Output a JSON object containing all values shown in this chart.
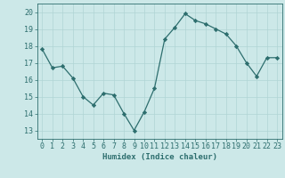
{
  "x": [
    0,
    1,
    2,
    3,
    4,
    5,
    6,
    7,
    8,
    9,
    10,
    11,
    12,
    13,
    14,
    15,
    16,
    17,
    18,
    19,
    20,
    21,
    22,
    23
  ],
  "y": [
    17.8,
    16.7,
    16.8,
    16.1,
    15.0,
    14.5,
    15.2,
    15.1,
    14.0,
    13.0,
    14.1,
    15.5,
    18.4,
    19.1,
    19.9,
    19.5,
    19.3,
    19.0,
    18.7,
    18.0,
    17.0,
    16.2,
    17.3,
    17.3
  ],
  "xlabel": "Humidex (Indice chaleur)",
  "xlim": [
    -0.5,
    23.5
  ],
  "ylim": [
    12.5,
    20.5
  ],
  "yticks": [
    13,
    14,
    15,
    16,
    17,
    18,
    19,
    20
  ],
  "xticks": [
    0,
    1,
    2,
    3,
    4,
    5,
    6,
    7,
    8,
    9,
    10,
    11,
    12,
    13,
    14,
    15,
    16,
    17,
    18,
    19,
    20,
    21,
    22,
    23
  ],
  "line_color": "#2d6e6e",
  "marker": "D",
  "marker_size": 2.2,
  "bg_color": "#cce8e8",
  "grid_color": "#b0d4d4",
  "label_fontsize": 6.5,
  "tick_fontsize": 6.0
}
